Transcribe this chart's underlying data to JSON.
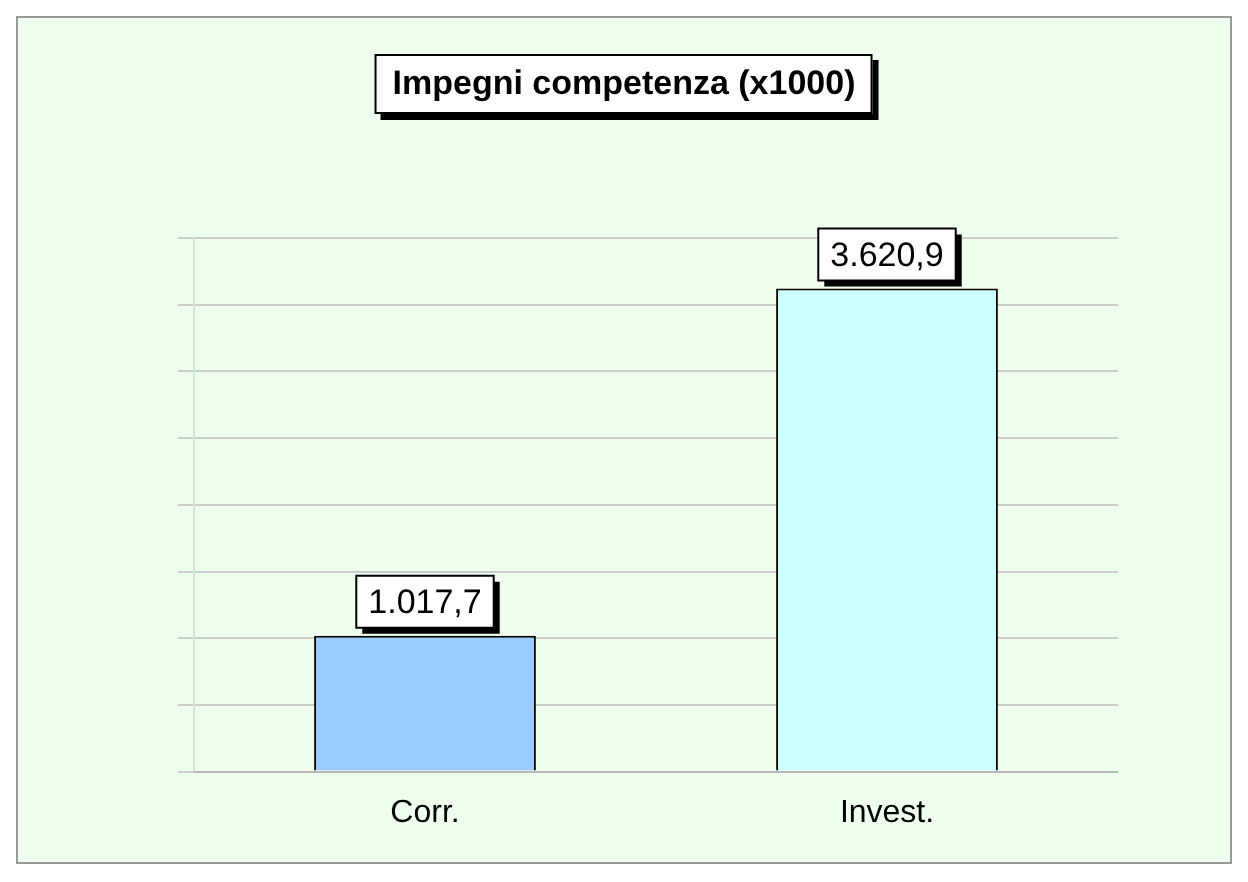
{
  "chart_data": {
    "type": "bar",
    "title": "Impegni competenza (x1000)",
    "categories": [
      "Corr.",
      "Invest."
    ],
    "values": [
      1017.7,
      3620.9
    ],
    "value_labels": [
      "1.017,7",
      "3.620,9"
    ],
    "colors": [
      "#99ccff",
      "#ccffff"
    ],
    "grid": "y",
    "legend": false
  }
}
